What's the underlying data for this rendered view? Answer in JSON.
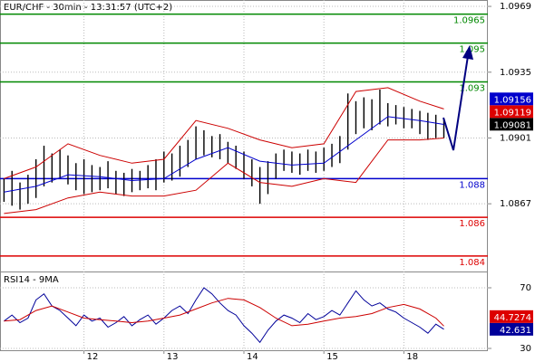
{
  "chart_data": [
    {
      "type": "hilo",
      "title": "EUR/CHF - 30min - 13:31:57 (UTC+2)",
      "x": [
        0,
        1,
        2,
        3,
        4,
        5,
        6,
        7,
        8,
        9,
        10,
        11,
        12,
        13,
        14,
        15,
        16,
        17,
        18,
        19,
        20,
        21,
        22,
        23,
        24,
        25,
        26,
        27,
        28,
        29,
        30,
        31,
        32,
        33,
        34,
        35,
        36,
        37,
        38,
        39,
        40,
        41,
        42,
        43,
        44,
        45,
        46,
        47,
        48,
        49,
        50,
        51,
        52,
        53,
        54,
        55
      ],
      "high": [
        1.088,
        1.0884,
        1.0878,
        1.0882,
        1.089,
        1.0897,
        1.0893,
        1.0895,
        1.0892,
        1.0888,
        1.089,
        1.0887,
        1.0886,
        1.0889,
        1.0884,
        1.0883,
        1.0885,
        1.0884,
        1.0887,
        1.089,
        1.0894,
        1.0893,
        1.0897,
        1.09,
        1.0907,
        1.0905,
        1.0902,
        1.0903,
        1.0899,
        1.0897,
        1.0894,
        1.089,
        1.0886,
        1.0889,
        1.0893,
        1.0895,
        1.0894,
        1.0893,
        1.0895,
        1.0894,
        1.0896,
        1.0898,
        1.0902,
        1.0924,
        1.092,
        1.0922,
        1.0921,
        1.0926,
        1.0919,
        1.0918,
        1.0917,
        1.0916,
        1.0915,
        1.0914,
        1.0913,
        1.0911
      ],
      "low": [
        1.0868,
        1.0866,
        1.0864,
        1.0867,
        1.087,
        1.0876,
        1.0878,
        1.088,
        1.0877,
        1.0874,
        1.0872,
        1.0873,
        1.0874,
        1.0875,
        1.0872,
        1.0871,
        1.0873,
        1.0874,
        1.0875,
        1.0874,
        1.0878,
        1.0879,
        1.0881,
        1.0886,
        1.089,
        1.0892,
        1.0891,
        1.089,
        1.0888,
        1.0885,
        1.088,
        1.0876,
        1.0867,
        1.0872,
        1.088,
        1.0884,
        1.0883,
        1.0882,
        1.0884,
        1.0883,
        1.0884,
        1.0886,
        1.0888,
        1.0895,
        1.0903,
        1.0906,
        1.0905,
        1.0908,
        1.0907,
        1.0908,
        1.0906,
        1.0906,
        1.0903,
        1.09,
        1.0901,
        1.0901
      ],
      "bar_color": "#000000",
      "series": [
        {
          "color": "#cc0000",
          "x": [
            0,
            4,
            8,
            12,
            16,
            20,
            24,
            28,
            32,
            36,
            40,
            44,
            48,
            52,
            55
          ],
          "values": [
            1.088,
            1.0886,
            1.0898,
            1.0892,
            1.0888,
            1.089,
            1.091,
            1.0906,
            1.09,
            1.0896,
            1.0898,
            1.0925,
            1.0927,
            1.092,
            1.0916
          ]
        },
        {
          "color": "#cc0000",
          "x": [
            0,
            4,
            8,
            12,
            16,
            20,
            24,
            28,
            32,
            36,
            40,
            44,
            48,
            52,
            55
          ],
          "values": [
            1.0862,
            1.0864,
            1.087,
            1.0873,
            1.0871,
            1.0871,
            1.0874,
            1.0888,
            1.0878,
            1.0876,
            1.088,
            1.0878,
            1.09,
            1.09,
            1.0901
          ]
        },
        {
          "color": "#0000cc",
          "x": [
            0,
            4,
            8,
            12,
            16,
            20,
            24,
            28,
            32,
            36,
            40,
            44,
            48,
            52,
            55
          ],
          "values": [
            1.0873,
            1.0876,
            1.0882,
            1.0881,
            1.0879,
            1.088,
            1.089,
            1.0896,
            1.0889,
            1.0887,
            1.0888,
            1.09,
            1.0912,
            1.091,
            1.0908
          ]
        }
      ],
      "levels": [
        {
          "value": 1.0965,
          "color": "#008800"
        },
        {
          "value": 1.095,
          "color": "#008800"
        },
        {
          "value": 1.093,
          "color": "#008800"
        },
        {
          "value": 1.088,
          "color": "#0000cc"
        },
        {
          "value": 1.086,
          "color": "#dd0000"
        },
        {
          "value": 1.084,
          "color": "#dd0000"
        }
      ],
      "tags": [
        {
          "value": 1.09156,
          "color": "#0000cc"
        },
        {
          "value": 1.09119,
          "color": "#dd0000"
        },
        {
          "value": 1.09081,
          "color": "#000000"
        }
      ],
      "xlim": [
        -0.5,
        60.5
      ],
      "ylim": [
        1.0832,
        1.09723
      ],
      "yticks": [
        1.0969,
        1.0935,
        1.0901,
        1.0867
      ]
    },
    {
      "type": "line",
      "title": "RSI14 - 9MA",
      "series": [
        {
          "color": "#000099",
          "x": [
            0,
            1,
            2,
            3,
            4,
            5,
            6,
            7,
            8,
            9,
            10,
            11,
            12,
            13,
            14,
            15,
            16,
            17,
            18,
            19,
            20,
            21,
            22,
            23,
            24,
            25,
            26,
            27,
            28,
            29,
            30,
            31,
            32,
            33,
            34,
            35,
            36,
            37,
            38,
            39,
            40,
            41,
            42,
            43,
            44,
            45,
            46,
            47,
            48,
            49,
            50,
            51,
            52,
            53,
            54,
            55
          ],
          "values": [
            48,
            52,
            47,
            50,
            62,
            66,
            58,
            55,
            50,
            45,
            52,
            48,
            50,
            44,
            47,
            51,
            45,
            49,
            52,
            46,
            50,
            55,
            58,
            53,
            62,
            70,
            66,
            60,
            55,
            52,
            45,
            40,
            34,
            42,
            48,
            52,
            50,
            47,
            53,
            49,
            51,
            55,
            52,
            60,
            68,
            62,
            58,
            60,
            56,
            54,
            50,
            47,
            44,
            40,
            46,
            42.631
          ]
        },
        {
          "color": "#cc0000",
          "x": [
            0,
            2,
            4,
            6,
            8,
            10,
            12,
            14,
            16,
            18,
            20,
            22,
            24,
            26,
            28,
            30,
            32,
            34,
            36,
            38,
            40,
            42,
            44,
            46,
            48,
            50,
            52,
            54,
            55
          ],
          "values": [
            48,
            49,
            55,
            58,
            54,
            50,
            49,
            48,
            47,
            48,
            50,
            52,
            56,
            60,
            63,
            62,
            57,
            50,
            45,
            46,
            48,
            50,
            51,
            53,
            57,
            59,
            56,
            50,
            44.7274
          ]
        }
      ],
      "tags": [
        {
          "value": 44.7274,
          "color": "#dd0000"
        },
        {
          "value": 42.631,
          "color": "#000099"
        }
      ],
      "xlim": [
        -0.5,
        60.5
      ],
      "ylim": [
        28.2,
        80.75
      ],
      "yticks": [
        70,
        30
      ],
      "xticks": [
        {
          "value": 10,
          "label": "12"
        },
        {
          "value": 20,
          "label": "13"
        },
        {
          "value": 30,
          "label": "14"
        },
        {
          "value": 40,
          "label": "15"
        },
        {
          "value": 50,
          "label": "18"
        }
      ]
    }
  ]
}
